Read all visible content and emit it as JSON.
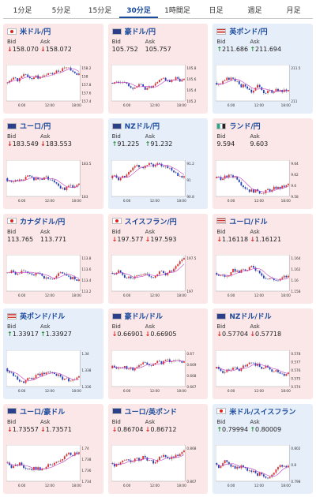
{
  "tabs": [
    "1分足",
    "5分足",
    "15分足",
    "30分足",
    "1時間足",
    "日足",
    "週足",
    "月足"
  ],
  "active_tab": 3,
  "cards": [
    {
      "pair": "米ドル/円",
      "flag": "red",
      "color": "pink",
      "bid": "158.070",
      "ask": "158.072",
      "dir": "down",
      "ticks": [
        "158.2",
        "158",
        "157.8",
        "157.6",
        "157.4"
      ],
      "times": [
        "6:00",
        "12:00",
        "18:00"
      ],
      "seed": 1
    },
    {
      "pair": "豪ドル/円",
      "flag": "blue",
      "color": "pink",
      "bid": "105.752",
      "ask": "105.757",
      "dir": "none",
      "ticks": [
        "105.8",
        "105.6",
        "105.4",
        "105.2"
      ],
      "times": [
        "6:00",
        "12:00",
        "18:00"
      ],
      "seed": 2
    },
    {
      "pair": "英ポンド/円",
      "flag": "stripes",
      "color": "blue",
      "bid": "211.686",
      "ask": "211.694",
      "dir": "up",
      "ticks": [
        "211.5",
        "211"
      ],
      "times": [
        "6:00",
        "12:00",
        "18:00"
      ],
      "seed": 3
    },
    {
      "pair": "ユーロ/円",
      "flag": "blue",
      "color": "pink",
      "bid": "183.549",
      "ask": "183.553",
      "dir": "down",
      "ticks": [
        "183.5",
        "183"
      ],
      "times": [
        "6:00",
        "12:00",
        "18:00"
      ],
      "seed": 4
    },
    {
      "pair": "NZドル/円",
      "flag": "blue",
      "color": "blue",
      "bid": "91.225",
      "ask": "91.232",
      "dir": "up",
      "ticks": [
        "91.2",
        "91",
        "90.8"
      ],
      "times": [
        "6:00",
        "12:00",
        "18:00"
      ],
      "seed": 5
    },
    {
      "pair": "ランド/円",
      "flag": "green",
      "color": "pink",
      "bid": "9.594",
      "ask": "9.603",
      "dir": "none",
      "ticks": [
        "9.64",
        "9.62",
        "9.6",
        "9.58"
      ],
      "times": [
        "6:00",
        "12:00",
        "18:00"
      ],
      "seed": 6
    },
    {
      "pair": "カナダドル/円",
      "flag": "red",
      "color": "pink",
      "bid": "113.765",
      "ask": "113.771",
      "dir": "none",
      "ticks": [
        "113.8",
        "113.6",
        "113.4",
        "113.2"
      ],
      "times": [
        "6:00",
        "12:00",
        "18:00"
      ],
      "seed": 7
    },
    {
      "pair": "スイスフラン/円",
      "flag": "red",
      "color": "pink",
      "bid": "197.577",
      "ask": "197.593",
      "dir": "down",
      "ticks": [
        "197.5",
        "197"
      ],
      "times": [
        "6:00",
        "12:00",
        "18:00"
      ],
      "seed": 8
    },
    {
      "pair": "ユーロ/ドル",
      "flag": "stripes",
      "color": "pink",
      "bid": "1.16118",
      "ask": "1.16121",
      "dir": "down",
      "ticks": [
        "1.164",
        "1.162",
        "1.16",
        "1.158"
      ],
      "times": [
        "6:00",
        "12:00",
        "18:00"
      ],
      "seed": 9
    },
    {
      "pair": "英ポンド/ドル",
      "flag": "stripes",
      "color": "blue",
      "bid": "1.33917",
      "ask": "1.33927",
      "dir": "up",
      "ticks": [
        "1.34",
        "1.338",
        "1.336"
      ],
      "times": [
        "6:00",
        "12:00",
        "18:00"
      ],
      "seed": 10
    },
    {
      "pair": "豪ドル/ドル",
      "flag": "blue",
      "color": "pink",
      "bid": "0.66901",
      "ask": "0.66905",
      "dir": "down",
      "ticks": [
        "0.67",
        "0.669",
        "0.668",
        "0.667"
      ],
      "times": [
        "6:00",
        "12:00",
        "18:00"
      ],
      "seed": 11
    },
    {
      "pair": "NZドル/ドル",
      "flag": "blue",
      "color": "pink",
      "bid": "0.57704",
      "ask": "0.57718",
      "dir": "down",
      "ticks": [
        "0.578",
        "0.577",
        "0.576",
        "0.575",
        "0.574"
      ],
      "times": [
        "6:00",
        "12:00",
        "18:00"
      ],
      "seed": 12
    },
    {
      "pair": "ユーロ/豪ドル",
      "flag": "blue",
      "color": "pink",
      "bid": "1.73557",
      "ask": "1.73571",
      "dir": "down",
      "ticks": [
        "1.74",
        "1.738",
        "1.736",
        "1.734"
      ],
      "times": [
        "6:00",
        "12:00",
        "18:00"
      ],
      "seed": 13
    },
    {
      "pair": "ユーロ/英ポンド",
      "flag": "blue",
      "color": "pink",
      "bid": "0.86704",
      "ask": "0.86712",
      "dir": "down",
      "ticks": [
        "0.868",
        "0.867"
      ],
      "times": [
        "6:00",
        "12:00",
        "18:00"
      ],
      "seed": 14
    },
    {
      "pair": "米ドル/スイスフラン",
      "flag": "red",
      "color": "blue",
      "bid": "0.79994",
      "ask": "0.80009",
      "dir": "up",
      "ticks": [
        "0.802",
        "0.8",
        "0.798"
      ],
      "times": [
        "6:00",
        "12:00",
        "18:00"
      ],
      "seed": 15
    }
  ],
  "labels": {
    "bid": "Bid",
    "ask": "Ask"
  }
}
